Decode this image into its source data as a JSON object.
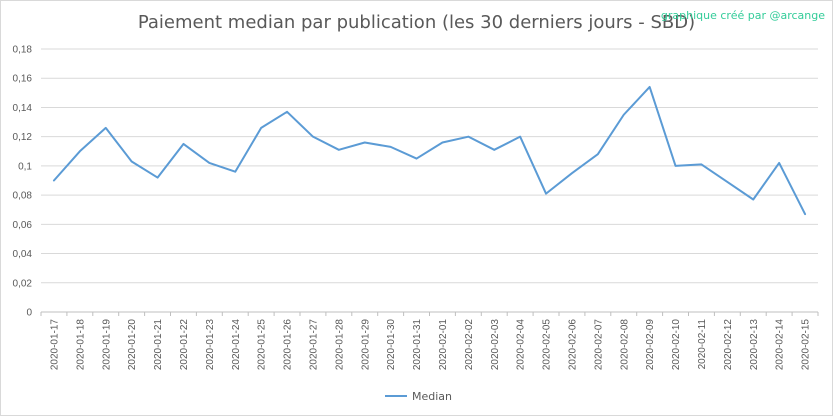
{
  "credit": "graphique créé par @arcange",
  "chart_data": {
    "type": "line",
    "title": "Paiement median par publication (les 30 derniers jours - SBD)",
    "xlabel": "",
    "ylabel": "",
    "ylim": [
      0,
      0.18
    ],
    "yticks": [
      "0",
      "0,02",
      "0,04",
      "0,06",
      "0,08",
      "0,1",
      "0,12",
      "0,14",
      "0,16",
      "0,18"
    ],
    "grid": true,
    "legend_position": "bottom",
    "categories": [
      "2020-01-17",
      "2020-01-18",
      "2020-01-19",
      "2020-01-20",
      "2020-01-21",
      "2020-01-22",
      "2020-01-23",
      "2020-01-24",
      "2020-01-25",
      "2020-01-26",
      "2020-01-27",
      "2020-01-28",
      "2020-01-29",
      "2020-01-30",
      "2020-01-31",
      "2020-02-01",
      "2020-02-02",
      "2020-02-03",
      "2020-02-04",
      "2020-02-05",
      "2020-02-06",
      "2020-02-07",
      "2020-02-08",
      "2020-02-09",
      "2020-02-10",
      "2020-02-11",
      "2020-02-12",
      "2020-02-13",
      "2020-02-14",
      "2020-02-15"
    ],
    "series": [
      {
        "name": "Median",
        "color": "#5b9bd5",
        "values": [
          0.09,
          0.11,
          0.126,
          0.103,
          0.092,
          0.115,
          0.102,
          0.096,
          0.126,
          0.137,
          0.12,
          0.111,
          0.116,
          0.113,
          0.105,
          0.116,
          0.12,
          0.111,
          0.12,
          0.081,
          0.095,
          0.108,
          0.135,
          0.154,
          0.1,
          0.101,
          0.089,
          0.077,
          0.102,
          0.067
        ]
      }
    ]
  }
}
